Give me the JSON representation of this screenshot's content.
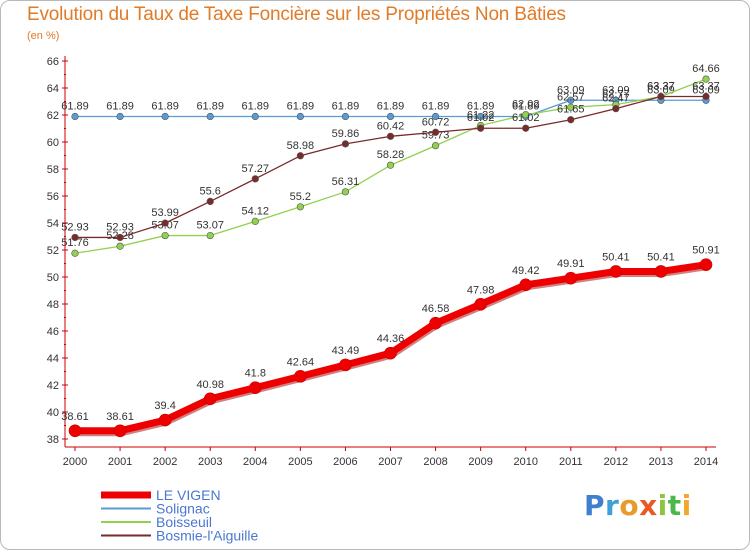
{
  "header": {
    "title": "Evolution du Taux de Taxe Foncière sur les Propriétés Non Bâties",
    "unit": "(en %)"
  },
  "logo": {
    "text": "Proxiti"
  },
  "chart_data": {
    "type": "line",
    "title": "Evolution du Taux de Taxe Foncière sur les Propriétés Non Bâties",
    "ylabel": "(en %)",
    "xlabel": "",
    "ylim": [
      38,
      66
    ],
    "yticks": [
      38,
      40,
      42,
      44,
      46,
      48,
      50,
      52,
      54,
      56,
      58,
      60,
      62,
      64,
      66
    ],
    "x": [
      2000,
      2001,
      2002,
      2003,
      2004,
      2005,
      2006,
      2007,
      2008,
      2009,
      2010,
      2011,
      2012,
      2013,
      2014
    ],
    "grid": false,
    "legend_position": "bottom-left",
    "series": [
      {
        "name": "LE VIGEN",
        "color": "#ee0000",
        "values": [
          38.61,
          38.61,
          39.4,
          40.98,
          41.8,
          42.64,
          43.49,
          44.36,
          46.58,
          47.98,
          49.42,
          49.91,
          50.41,
          50.41,
          50.91
        ]
      },
      {
        "name": "Solignac",
        "color": "#5b9bd5",
        "values": [
          61.89,
          61.89,
          61.89,
          61.89,
          61.89,
          61.89,
          61.89,
          61.89,
          61.89,
          61.89,
          61.89,
          63.09,
          63.09,
          63.09,
          63.09
        ]
      },
      {
        "name": "Boisseuil",
        "color": "#92d050",
        "values": [
          51.76,
          52.28,
          53.07,
          53.07,
          54.12,
          55.2,
          56.31,
          58.28,
          59.73,
          61.22,
          62.02,
          62.57,
          62.77,
          63.37,
          64.66
        ]
      },
      {
        "name": "Bosmie-l'Aiguille",
        "color": "#7a2a2a",
        "values": [
          52.93,
          52.93,
          53.99,
          55.6,
          57.27,
          58.98,
          59.86,
          60.42,
          60.72,
          61.02,
          61.02,
          61.65,
          62.47,
          63.37,
          63.37
        ]
      }
    ]
  }
}
